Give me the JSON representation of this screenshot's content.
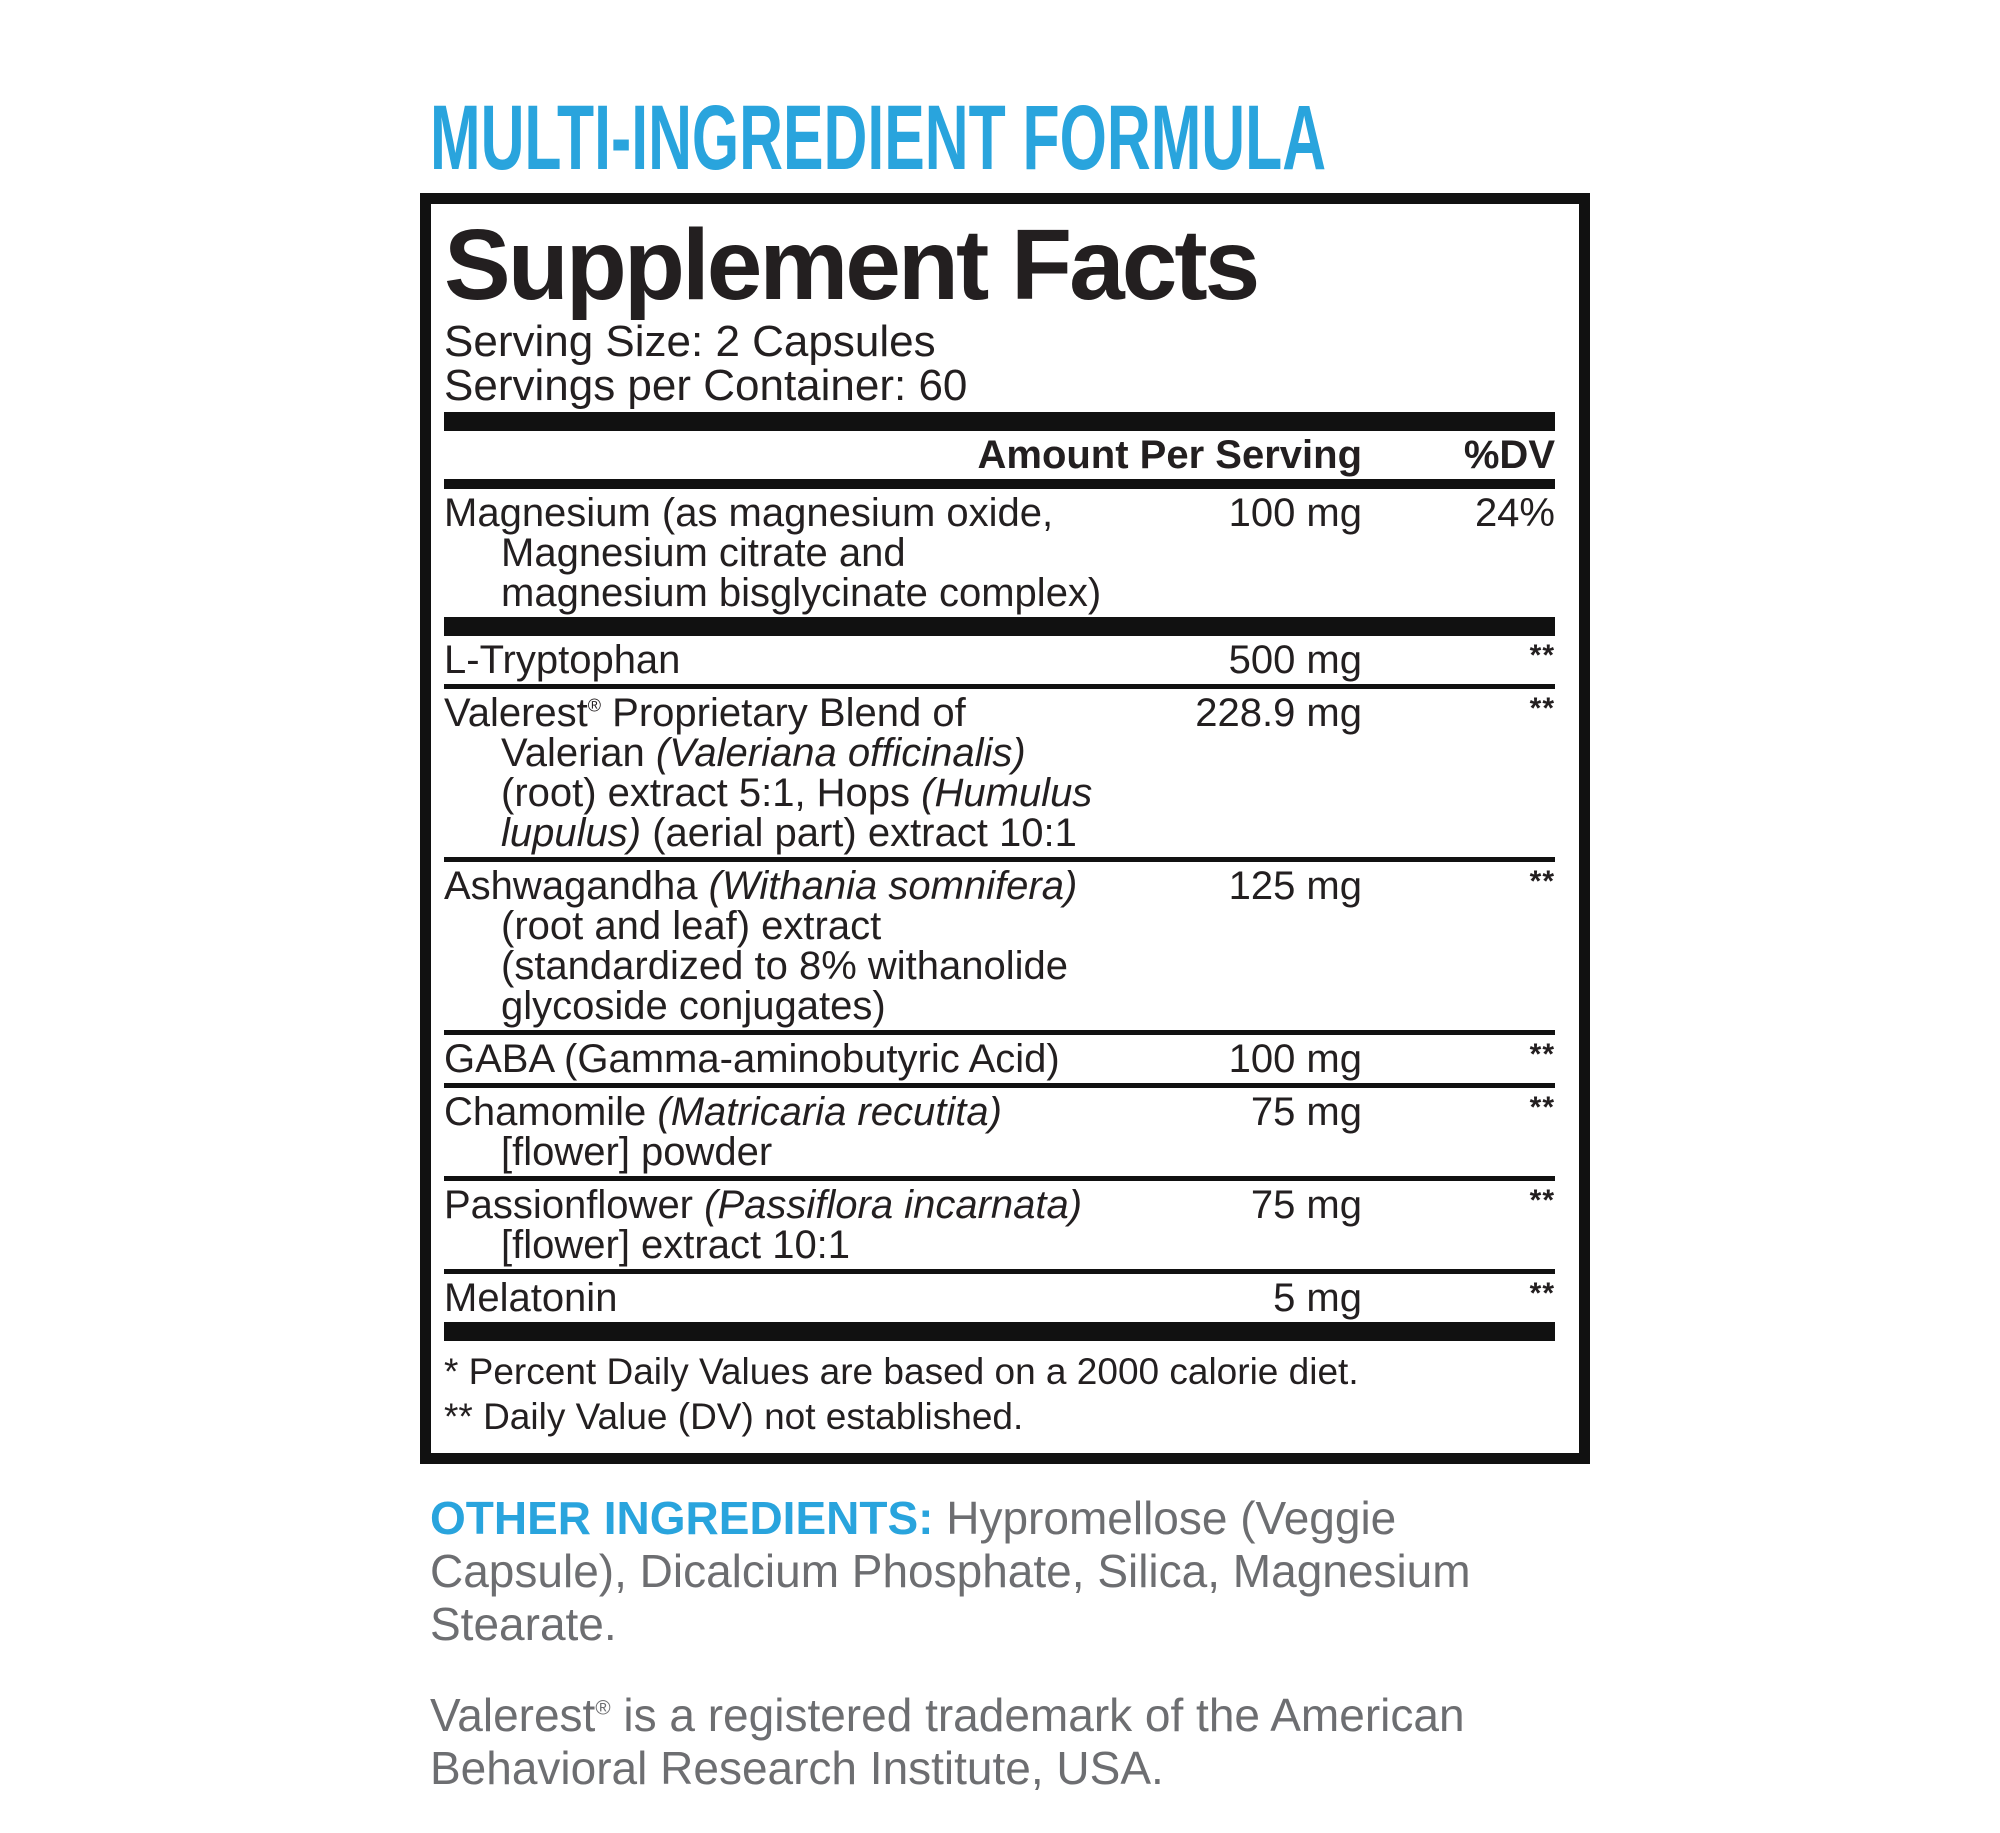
{
  "colors": {
    "accent_blue": "#29a4dd",
    "text_dark": "#231f20",
    "text_gray": "#6d6e71",
    "rule_black": "#111111"
  },
  "header": {
    "tagline": "MULTI-INGREDIENT FORMULA"
  },
  "panel": {
    "title": "Supplement Facts",
    "serving_size": "Serving Size: 2 Capsules",
    "servings_per_container": "Servings per Container: 60",
    "columns": {
      "amount": "Amount Per Serving",
      "dv": "%DV"
    },
    "rows": [
      {
        "lines": [
          [
            {
              "t": "Magnesium (as magnesium oxide,"
            }
          ],
          [
            {
              "t": "Magnesium citrate and"
            }
          ],
          [
            {
              "t": "magnesium bisglycinate complex)"
            }
          ]
        ],
        "amount": "100 mg",
        "dv": "24%",
        "after": "thick"
      },
      {
        "lines": [
          [
            {
              "t": "L-Tryptophan"
            }
          ]
        ],
        "amount": "500 mg",
        "dv": "**",
        "after": "thin"
      },
      {
        "lines": [
          [
            {
              "t": "Valerest"
            },
            {
              "t": "®",
              "sup": true
            },
            {
              "t": " Proprietary Blend of"
            }
          ],
          [
            {
              "t": "Valerian "
            },
            {
              "t": "(Valeriana officinalis)",
              "i": true
            }
          ],
          [
            {
              "t": "(root) extract 5:1, Hops "
            },
            {
              "t": "(Humulus",
              "i": true
            }
          ],
          [
            {
              "t": "lupulus)",
              "i": true
            },
            {
              "t": " (aerial part) extract 10:1"
            }
          ]
        ],
        "amount": "228.9 mg",
        "dv": "**",
        "after": "thin"
      },
      {
        "lines": [
          [
            {
              "t": "Ashwagandha "
            },
            {
              "t": "(Withania somnifera)",
              "i": true
            }
          ],
          [
            {
              "t": "(root and leaf) extract"
            }
          ],
          [
            {
              "t": "(standardized to 8% withanolide"
            }
          ],
          [
            {
              "t": "glycoside conjugates)"
            }
          ]
        ],
        "amount": "125 mg",
        "dv": "**",
        "after": "thin"
      },
      {
        "lines": [
          [
            {
              "t": "GABA (Gamma-aminobutyric Acid)"
            }
          ]
        ],
        "amount": "100 mg",
        "dv": "**",
        "after": "thin"
      },
      {
        "lines": [
          [
            {
              "t": "Chamomile "
            },
            {
              "t": "(Matricaria recutita)",
              "i": true
            }
          ],
          [
            {
              "t": "[flower] powder"
            }
          ]
        ],
        "amount": "75 mg",
        "dv": "**",
        "after": "thin"
      },
      {
        "lines": [
          [
            {
              "t": "Passionflower "
            },
            {
              "t": "(Passiflora incarnata)",
              "i": true
            }
          ],
          [
            {
              "t": "[flower] extract 10:1"
            }
          ]
        ],
        "amount": "75 mg",
        "dv": "**",
        "after": "thin"
      },
      {
        "lines": [
          [
            {
              "t": "Melatonin"
            }
          ]
        ],
        "amount": "5 mg",
        "dv": "**",
        "after": "thick"
      }
    ],
    "footnotes": [
      "* Percent Daily Values are based on a 2000 calorie diet.",
      "** Daily Value (DV) not established."
    ]
  },
  "footer": {
    "other_ingredients_label": "OTHER INGREDIENTS:",
    "other_ingredients_text": " Hypromellose (Veggie Capsule), Dicalcium Phosphate, Silica, Magnesium Stearate.",
    "trademark_name": "Valerest",
    "trademark_reg": "®",
    "trademark_text": " is a registered trademark of the American Behavioral Research Institute, USA."
  }
}
